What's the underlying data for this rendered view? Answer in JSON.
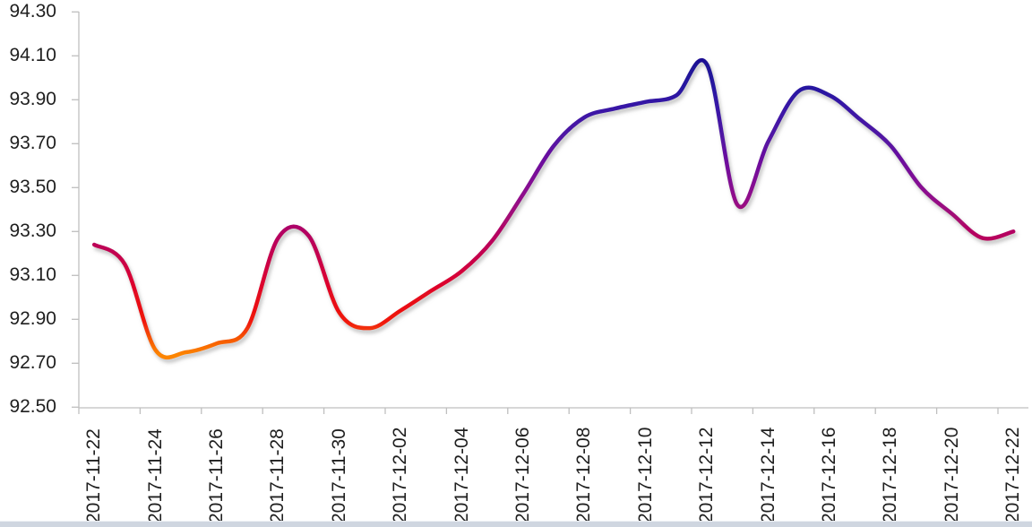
{
  "page": {
    "background": "#FFFFFF",
    "bottom_edge_bar_color": "#CFD6E0"
  },
  "chart_data": {
    "type": "line",
    "title": "",
    "smooth": true,
    "grid": false,
    "legend": false,
    "line_color_mapping": "value_gradient",
    "x": [
      "2017-11-22",
      "2017-11-23",
      "2017-11-24",
      "2017-11-25",
      "2017-11-26",
      "2017-11-27",
      "2017-11-28",
      "2017-11-29",
      "2017-11-30",
      "2017-12-01",
      "2017-12-02",
      "2017-12-03",
      "2017-12-04",
      "2017-12-05",
      "2017-12-06",
      "2017-12-07",
      "2017-12-08",
      "2017-12-09",
      "2017-12-10",
      "2017-12-11",
      "2017-12-12",
      "2017-12-13",
      "2017-12-14",
      "2017-12-15",
      "2017-12-16",
      "2017-12-17",
      "2017-12-18",
      "2017-12-19",
      "2017-12-20",
      "2017-12-21",
      "2017-12-22"
    ],
    "values": [
      93.24,
      93.15,
      92.76,
      92.75,
      92.79,
      92.86,
      93.27,
      93.28,
      92.93,
      92.86,
      92.94,
      93.03,
      93.12,
      93.26,
      93.47,
      93.69,
      93.82,
      93.86,
      93.89,
      93.92,
      94.06,
      93.42,
      93.71,
      93.94,
      93.92,
      93.81,
      93.69,
      93.5,
      93.38,
      93.27,
      93.3
    ],
    "x_tick_labels": [
      "2017-11-22",
      "2017-11-24",
      "2017-11-26",
      "2017-11-28",
      "2017-11-30",
      "2017-12-02",
      "2017-12-04",
      "2017-12-06",
      "2017-12-08",
      "2017-12-10",
      "2017-12-12",
      "2017-12-14",
      "2017-12-16",
      "2017-12-18",
      "2017-12-20",
      "2017-12-22"
    ],
    "y_tick_labels": [
      "94.30",
      "94.10",
      "93.90",
      "93.70",
      "93.50",
      "93.30",
      "93.10",
      "92.90",
      "92.70",
      "92.50"
    ],
    "ylim": [
      92.5,
      94.3
    ],
    "y_tick_step": 0.2,
    "gradient_stops": [
      {
        "value": 94.08,
        "color": "#1D1193"
      },
      {
        "value": 93.95,
        "color": "#2815A1"
      },
      {
        "value": 93.87,
        "color": "#3714A6"
      },
      {
        "value": 93.74,
        "color": "#4F13A4"
      },
      {
        "value": 93.66,
        "color": "#6311A0"
      },
      {
        "value": 93.54,
        "color": "#7F0E96"
      },
      {
        "value": 93.44,
        "color": "#940C88"
      },
      {
        "value": 93.3,
        "color": "#B30563"
      },
      {
        "value": 93.2,
        "color": "#C30350"
      },
      {
        "value": 93.1,
        "color": "#D60038"
      },
      {
        "value": 92.99,
        "color": "#E70A1A"
      },
      {
        "value": 92.89,
        "color": "#F01708"
      },
      {
        "value": 92.82,
        "color": "#F55106"
      },
      {
        "value": 92.74,
        "color": "#FC8503"
      }
    ],
    "style": {
      "axis_color": "#BFBFBF",
      "label_color": "#1F1F1F",
      "line_width": 4.5,
      "shadow": true
    }
  }
}
